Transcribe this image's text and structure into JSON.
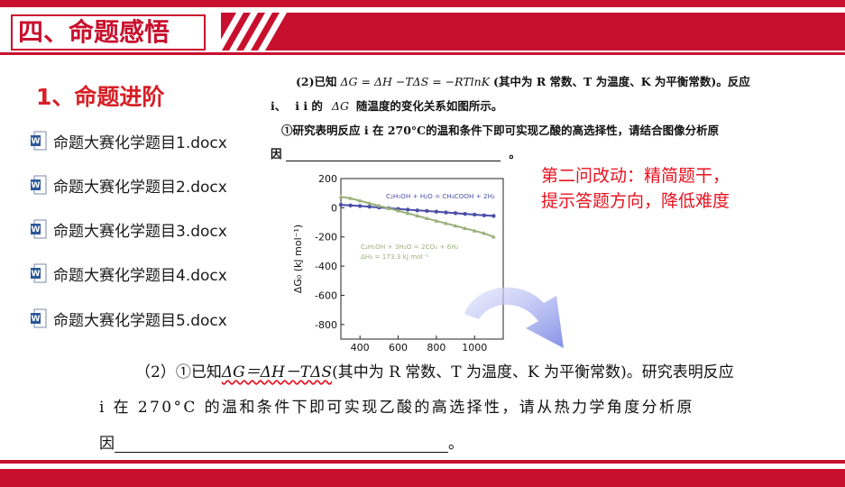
{
  "header": {
    "title": "四、命题感悟",
    "accent_color": "#c8102e"
  },
  "section": {
    "heading": "1、命题进阶"
  },
  "files": [
    {
      "name": "命题大赛化学题目1.docx",
      "icon": "word-doc-icon"
    },
    {
      "name": "命题大赛化学题目2.docx",
      "icon": "word-doc-icon"
    },
    {
      "name": "命题大赛化学题目3.docx",
      "icon": "word-doc-icon"
    },
    {
      "name": "命题大赛化学题目4.docx",
      "icon": "word-doc-icon"
    },
    {
      "name": "命题大赛化学题目5.docx",
      "icon": "word-doc-icon"
    }
  ],
  "original_question": {
    "line1_prefix": "(2)已知",
    "line1_formula": "ΔG = ΔH −TΔS = −RTlnK",
    "line1_suffix": "(其中为 R 常数、T 为温度、K 为平衡常数)。反应",
    "line2_a": "i、",
    "line2_b": "i i 的",
    "line2_c": "ΔG",
    "line2_d": "随温度的变化关系如图所示。",
    "line3": "①研究表明反应 i 在 270°C的温和条件下即可实现乙酸的高选择性，请结合图像分析原",
    "line4_prefix": "因",
    "line4_suffix": "。"
  },
  "annotation": {
    "line1": "第二问改动：精简题干，",
    "line2": "提示答题方向，降低难度"
  },
  "revised_question": {
    "line1_prefix": "（2）①已知",
    "line1_formula": "ΔG＝ΔH－TΔS",
    "line1_suffix": "(其中为 R 常数、T 为温度、K 为平衡常数)。研究表明反应",
    "line2": "i 在 270°C 的温和条件下即可实现乙酸的高选择性，请从热力学角度分析原",
    "line3_prefix": "因",
    "line3_suffix": "。"
  },
  "chart_data": {
    "type": "line",
    "ylabel": "ΔG₀ (kJ mol⁻¹)",
    "xlabel": "Temperature (K)",
    "ylim": [
      -900,
      200
    ],
    "xlim": [
      300,
      1150
    ],
    "x_ticks": [
      400,
      600,
      800,
      1000
    ],
    "y_ticks": [
      200,
      0,
      -200,
      -400,
      -600,
      -800
    ],
    "series": [
      {
        "name": "C₂H₅OH + H₂O = CH₃COOH + 2H₂",
        "color": "#4b4fa8",
        "x": [
          300,
          350,
          400,
          450,
          500,
          550,
          600,
          650,
          700,
          750,
          800,
          850,
          900,
          950,
          1000,
          1050,
          1100
        ],
        "y": [
          20,
          16,
          12,
          7,
          2,
          -3,
          -8,
          -13,
          -18,
          -22,
          -27,
          -32,
          -37,
          -42,
          -47,
          -52,
          -56
        ]
      },
      {
        "name": "C₂H₅OH + 3H₂O = 2CO₂ + 6H₂",
        "color": "#9ab07a",
        "x": [
          300,
          350,
          400,
          450,
          500,
          550,
          600,
          650,
          700,
          750,
          800,
          850,
          900,
          950,
          1000,
          1050,
          1100
        ],
        "y": [
          75,
          65,
          48,
          30,
          13,
          -4,
          -21,
          -38,
          -55,
          -73,
          -90,
          -107,
          -124,
          -141,
          -158,
          -175,
          -200
        ]
      }
    ],
    "annotations": [
      "ΔH₀ = 173.3 kJ mol⁻¹"
    ]
  }
}
